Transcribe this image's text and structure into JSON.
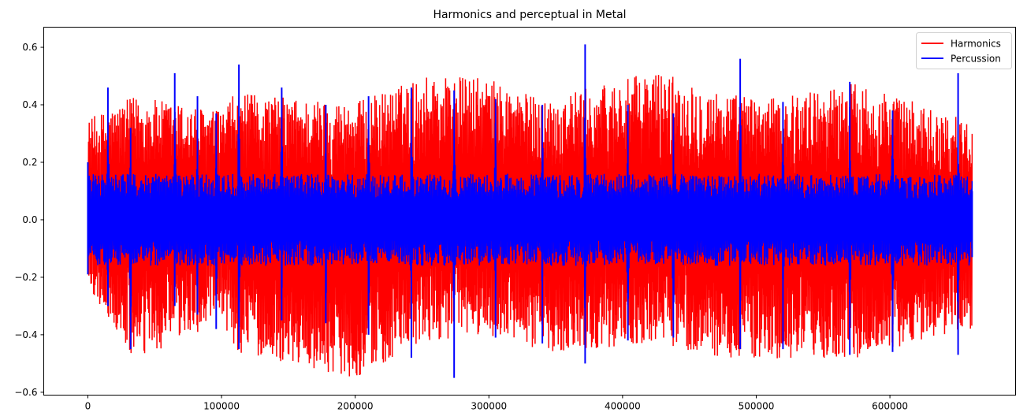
{
  "chart_data": {
    "type": "line",
    "title": "Harmonics and perceptual in Metal",
    "xlabel": "",
    "ylabel": "",
    "xlim": [
      -33000,
      694000
    ],
    "ylim": [
      -0.61,
      0.67
    ],
    "x_ticks": [
      0,
      100000,
      200000,
      300000,
      400000,
      500000,
      600000
    ],
    "x_tick_labels": [
      "0",
      "100000",
      "200000",
      "300000",
      "400000",
      "500000",
      "600000"
    ],
    "y_ticks": [
      -0.6,
      -0.4,
      -0.2,
      0.0,
      0.2,
      0.4,
      0.6
    ],
    "y_tick_labels": [
      "−0.6",
      "−0.4",
      "−0.2",
      "0.0",
      "0.2",
      "0.4",
      "0.6"
    ],
    "grid": false,
    "legend_position": "top-right",
    "x_range": [
      0,
      661500
    ],
    "series": [
      {
        "name": "Harmonics",
        "color": "#ff0000",
        "envelope_points": [
          [
            0,
            0.35,
            -0.23
          ],
          [
            35000,
            0.43,
            -0.5
          ],
          [
            100000,
            0.38,
            -0.35
          ],
          [
            110000,
            0.44,
            -0.46
          ],
          [
            200000,
            0.41,
            -0.55
          ],
          [
            258000,
            0.51,
            -0.42
          ],
          [
            300000,
            0.49,
            -0.4
          ],
          [
            340000,
            0.42,
            -0.46
          ],
          [
            428000,
            0.52,
            -0.43
          ],
          [
            470000,
            0.45,
            -0.48
          ],
          [
            510000,
            0.42,
            -0.49
          ],
          [
            575000,
            0.48,
            -0.48
          ],
          [
            661500,
            0.34,
            -0.38
          ]
        ]
      },
      {
        "name": "Percussion",
        "color": "#0000ff",
        "spikes": [
          [
            0,
            0.2,
            -0.19
          ],
          [
            15000,
            0.46,
            -0.3
          ],
          [
            32000,
            0.32,
            -0.45
          ],
          [
            65000,
            0.51,
            -0.3
          ],
          [
            82000,
            0.43,
            -0.33
          ],
          [
            96000,
            0.37,
            -0.38
          ],
          [
            113000,
            0.54,
            -0.45
          ],
          [
            145000,
            0.46,
            -0.35
          ],
          [
            178000,
            0.4,
            -0.36
          ],
          [
            210000,
            0.43,
            -0.4
          ],
          [
            242000,
            0.46,
            -0.48
          ],
          [
            274000,
            0.45,
            -0.55
          ],
          [
            305000,
            0.42,
            -0.41
          ],
          [
            340000,
            0.4,
            -0.43
          ],
          [
            372000,
            0.61,
            -0.5
          ],
          [
            404000,
            0.4,
            -0.42
          ],
          [
            438000,
            0.37,
            -0.41
          ],
          [
            488000,
            0.56,
            -0.45
          ],
          [
            520000,
            0.41,
            -0.45
          ],
          [
            570000,
            0.48,
            -0.47
          ],
          [
            602000,
            0.38,
            -0.46
          ],
          [
            651000,
            0.51,
            -0.47
          ],
          [
            661500,
            0.1,
            -0.13
          ]
        ],
        "base_amplitude": 0.16
      }
    ]
  }
}
